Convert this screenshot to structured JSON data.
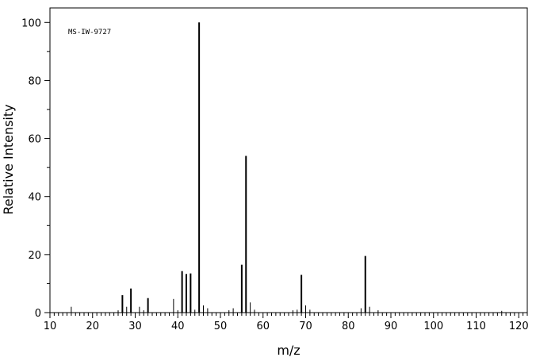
{
  "chart_data": {
    "type": "bar",
    "xlabel": "m/z",
    "ylabel": "Relative Intensity",
    "annotation": "MS-IW-9727",
    "xlim": [
      10,
      122
    ],
    "ylim": [
      0,
      105
    ],
    "xticks": [
      10,
      20,
      30,
      40,
      50,
      60,
      70,
      80,
      90,
      100,
      110,
      120
    ],
    "yticks": [
      0,
      20,
      40,
      60,
      80,
      100
    ],
    "grid": false,
    "peaks": [
      {
        "mz": 15,
        "intensity": 2.0
      },
      {
        "mz": 26,
        "intensity": 0.8
      },
      {
        "mz": 27,
        "intensity": 6.0
      },
      {
        "mz": 28,
        "intensity": 2.0
      },
      {
        "mz": 29,
        "intensity": 8.3
      },
      {
        "mz": 31,
        "intensity": 2.0
      },
      {
        "mz": 32,
        "intensity": 0.8
      },
      {
        "mz": 33,
        "intensity": 5.0
      },
      {
        "mz": 39,
        "intensity": 4.7
      },
      {
        "mz": 40,
        "intensity": 0.8
      },
      {
        "mz": 41,
        "intensity": 14.3
      },
      {
        "mz": 42,
        "intensity": 13.3
      },
      {
        "mz": 43,
        "intensity": 13.5
      },
      {
        "mz": 44,
        "intensity": 1.0
      },
      {
        "mz": 45,
        "intensity": 100.0
      },
      {
        "mz": 46,
        "intensity": 2.5
      },
      {
        "mz": 47,
        "intensity": 1.5
      },
      {
        "mz": 52,
        "intensity": 0.8
      },
      {
        "mz": 53,
        "intensity": 1.5
      },
      {
        "mz": 55,
        "intensity": 16.5
      },
      {
        "mz": 56,
        "intensity": 54.0
      },
      {
        "mz": 57,
        "intensity": 3.5
      },
      {
        "mz": 58,
        "intensity": 1.0
      },
      {
        "mz": 67,
        "intensity": 0.8
      },
      {
        "mz": 68,
        "intensity": 1.0
      },
      {
        "mz": 69,
        "intensity": 13.0
      },
      {
        "mz": 70,
        "intensity": 2.5
      },
      {
        "mz": 71,
        "intensity": 1.0
      },
      {
        "mz": 83,
        "intensity": 1.5
      },
      {
        "mz": 84,
        "intensity": 19.5
      },
      {
        "mz": 85,
        "intensity": 2.0
      },
      {
        "mz": 87,
        "intensity": 0.8
      },
      {
        "mz": 116,
        "intensity": 0.6
      }
    ]
  }
}
